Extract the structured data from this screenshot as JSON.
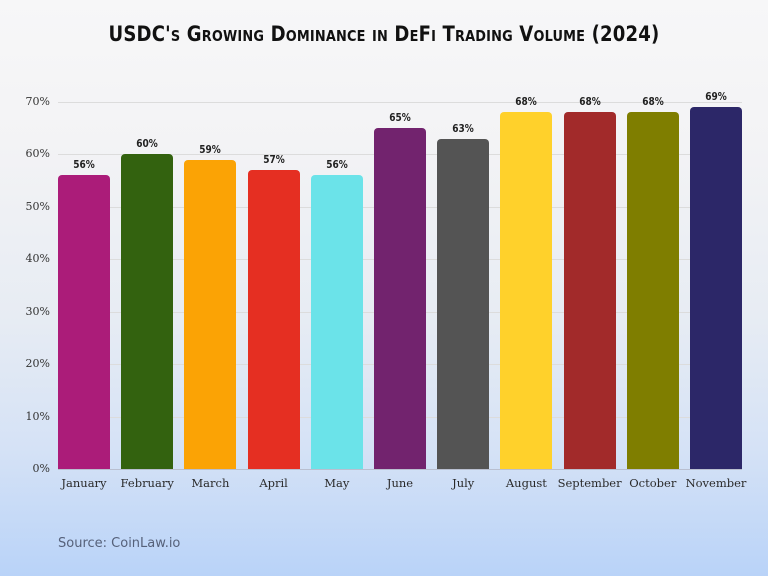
{
  "title": "USDC's Growing Dominance in DeFi Trading Volume (2024)",
  "source": "Source: CoinLaw.io",
  "chart_data": {
    "type": "bar",
    "title": "USDC's Growing Dominance in DeFi Trading Volume (2024)",
    "xlabel": "",
    "ylabel": "",
    "categories": [
      "January",
      "February",
      "March",
      "April",
      "May",
      "June",
      "July",
      "August",
      "September",
      "October",
      "November"
    ],
    "values": [
      56,
      60,
      59,
      57,
      56,
      65,
      63,
      68,
      68,
      68,
      69
    ],
    "value_labels": [
      "56%",
      "60%",
      "59%",
      "57%",
      "56%",
      "65%",
      "63%",
      "68%",
      "68%",
      "68%",
      "69%"
    ],
    "colors": [
      "#ab1c79",
      "#33620f",
      "#fba305",
      "#e52f22",
      "#6be3e9",
      "#72236e",
      "#545454",
      "#ffd12b",
      "#a22a2a",
      "#7f7e00",
      "#2c2768"
    ],
    "ylim": [
      0,
      70
    ],
    "yticks": [
      "0%",
      "10%",
      "20%",
      "30%",
      "40%",
      "50%",
      "60%",
      "70%"
    ],
    "grid": true,
    "legend": "none"
  }
}
